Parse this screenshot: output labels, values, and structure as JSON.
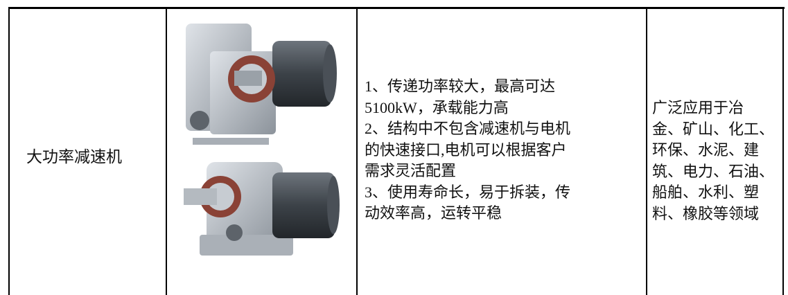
{
  "table": {
    "rows": [
      {
        "name": "大功率减速机",
        "features": [
          "1、传递功率较大，最高可达",
          "5100kW，承载能力高",
          "2、结构中不包含减速机与电机",
          "的快速接口,电机可以根据客户",
          "需求灵活配置",
          "3、使用寿命长，易于拆装，传",
          "动效率高，运转平稳"
        ],
        "applications": [
          "广泛应用于冶",
          "金、矿山、化工、",
          "环保、水泥、建",
          "筑、电力、石油、",
          "船舶、水利、塑",
          "料、橡胶等领域"
        ]
      }
    ]
  }
}
